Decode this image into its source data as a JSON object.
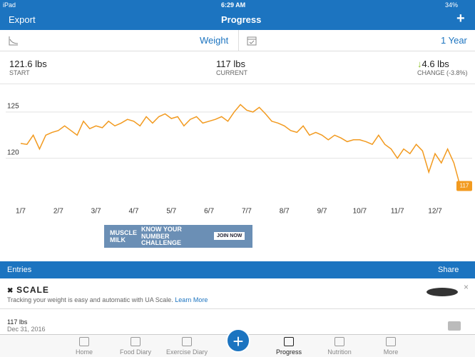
{
  "status": {
    "device": "iPad",
    "time": "6:29 AM",
    "battery": "34%"
  },
  "nav": {
    "left": "Export",
    "title": "Progress",
    "right": "+"
  },
  "filter": {
    "metric": "Weight",
    "range": "1 Year"
  },
  "stats": [
    {
      "value": "121.6 lbs",
      "label": "START"
    },
    {
      "value": "117 lbs",
      "label": "CURRENT"
    },
    {
      "value": "4.6 lbs",
      "label": "CHANGE (-3.8%)"
    }
  ],
  "chart_data": {
    "type": "line",
    "color": "#f29a1f",
    "ylim": [
      115.5,
      128
    ],
    "yticks": [
      120,
      125
    ],
    "grid": true,
    "categories": [
      "1/7",
      null,
      null,
      null,
      null,
      null,
      "2/7",
      null,
      null,
      null,
      null,
      null,
      "3/7",
      null,
      null,
      null,
      null,
      null,
      "4/7",
      null,
      null,
      null,
      null,
      null,
      "5/7",
      null,
      null,
      null,
      null,
      null,
      "6/7",
      null,
      null,
      null,
      null,
      null,
      "7/7",
      null,
      null,
      null,
      null,
      null,
      "8/7",
      null,
      null,
      null,
      null,
      null,
      "9/7",
      null,
      null,
      null,
      null,
      null,
      "10/7",
      null,
      null,
      null,
      null,
      null,
      "11/7",
      null,
      null,
      null,
      null,
      null,
      "12/7",
      null,
      null,
      null,
      null
    ],
    "values": [
      121.6,
      121.5,
      122.5,
      121,
      122.5,
      122.8,
      123,
      123.5,
      123,
      122.5,
      124,
      123.2,
      123.5,
      123.3,
      124,
      123.5,
      123.8,
      124.2,
      124,
      123.5,
      124.5,
      123.8,
      124.5,
      124.8,
      124.3,
      124.5,
      123.5,
      124.2,
      124.5,
      123.8,
      124,
      124.2,
      124.5,
      124,
      125,
      125.8,
      125.2,
      125,
      125.5,
      124.8,
      124,
      123.8,
      123.5,
      123,
      122.8,
      123.5,
      122.5,
      122.8,
      122.5,
      122,
      122.5,
      122.2,
      121.8,
      122,
      122,
      121.8,
      121.5,
      122.5,
      121.5,
      121,
      120,
      121,
      120.5,
      121.5,
      120.8,
      118.5,
      120.5,
      119.5,
      121,
      119.5,
      117
    ]
  },
  "ad": {
    "brand": "MUSCLE MILK",
    "headline": "KNOW YOUR NUMBER CHALLENGE",
    "cta": "JOIN NOW"
  },
  "entries": {
    "title": "Entries",
    "share": "Share"
  },
  "promo": {
    "brand": "SCALE",
    "text": "Tracking your weight is easy and automatic with UA Scale.",
    "link": "Learn More"
  },
  "entry": {
    "value": "117 lbs",
    "date": "Dec 31, 2016"
  },
  "tabs": [
    "Home",
    "Food Diary",
    "Exercise Diary",
    "Progress",
    "Nutrition",
    "More"
  ]
}
